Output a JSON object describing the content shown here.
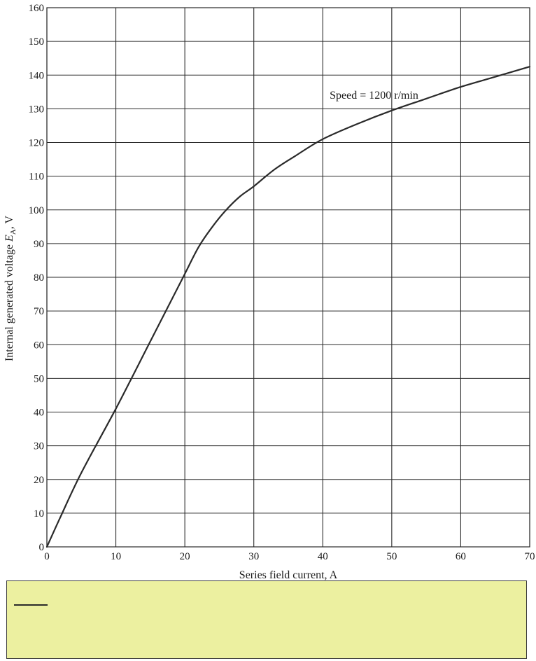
{
  "chart_data": {
    "type": "line",
    "title": "",
    "xlabel": "Series field current, A",
    "ylabel_main": "Internal generated voltage ",
    "ylabel_var": "E",
    "ylabel_sub": "A",
    "ylabel_unit": ", V",
    "xlim": [
      0,
      70
    ],
    "ylim": [
      0,
      160
    ],
    "x_ticks": [
      0,
      10,
      20,
      30,
      40,
      50,
      60,
      70
    ],
    "y_ticks": [
      0,
      10,
      20,
      30,
      40,
      50,
      60,
      70,
      80,
      90,
      100,
      110,
      120,
      130,
      140,
      150,
      160
    ],
    "grid": true,
    "annotation": "Speed = 1200 r/min",
    "annotation_at": [
      41,
      133
    ],
    "series": [
      {
        "x": [
          0,
          2,
          5,
          10,
          15,
          18,
          20,
          22,
          24,
          26,
          28,
          30,
          33,
          36,
          40,
          45,
          50,
          55,
          60,
          65,
          70
        ],
        "y": [
          0,
          9,
          22,
          41,
          61,
          73,
          81,
          89,
          95,
          100,
          104,
          107,
          112,
          116,
          121,
          125.5,
          129.5,
          133,
          136.5,
          139.5,
          142.5
        ]
      }
    ]
  },
  "legend": {
    "swatch_color": "#2a2a2a",
    "background": "#ecf0a0"
  }
}
